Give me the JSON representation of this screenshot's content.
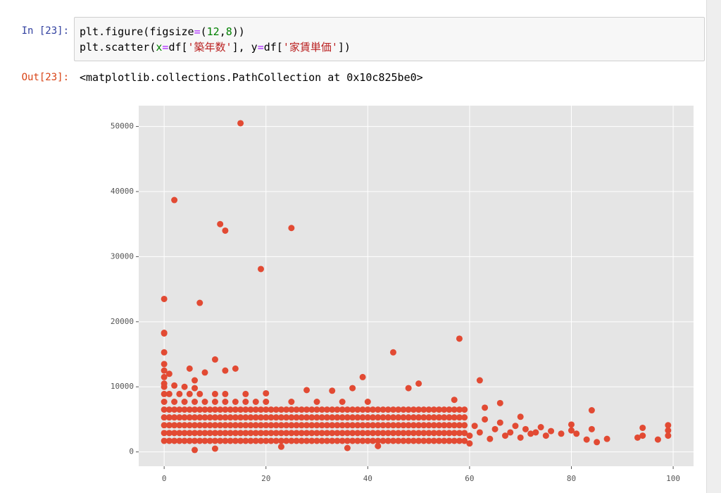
{
  "cells": [
    {
      "prompt": "In [23]:",
      "code": [
        [
          "plt.figure(figsize",
          "=",
          "(",
          "12",
          ",",
          "8",
          "))"
        ],
        [
          "plt.scatter(",
          "x",
          "=",
          "df[",
          "'築年数'",
          "], y",
          "=",
          "df[",
          "'家賃単価'",
          "])"
        ]
      ]
    },
    {
      "prompt": "Out[23]:",
      "output": "<matplotlib.collections.PathCollection at 0x10c825be0>"
    }
  ],
  "chart_data": {
    "type": "scatter",
    "color": "#E24A33",
    "grid": true,
    "xlim": [
      -5,
      104
    ],
    "ylim": [
      -2200,
      53200
    ],
    "xticks": [
      0,
      20,
      40,
      60,
      80,
      100
    ],
    "yticks": [
      0,
      10000,
      20000,
      30000,
      40000,
      50000
    ],
    "series": [
      {
        "x": [
          0,
          1,
          2,
          3,
          4,
          5,
          6,
          7,
          8,
          9,
          10,
          11,
          12,
          13,
          14,
          15,
          16,
          17,
          18,
          19,
          20,
          21,
          22,
          23,
          24,
          25,
          26,
          27,
          28,
          29,
          30,
          31,
          32,
          33,
          34,
          35,
          36,
          37,
          38,
          39,
          40,
          41,
          42,
          43,
          44,
          45,
          46,
          47,
          48,
          49,
          50,
          51,
          52,
          53,
          54,
          55,
          56,
          57,
          58,
          59,
          0,
          1,
          2,
          3,
          4,
          5,
          6,
          7,
          8,
          9,
          10,
          11,
          12,
          13,
          14,
          15,
          16,
          17,
          18,
          19,
          20,
          21,
          22,
          23,
          24,
          25,
          26,
          27,
          28,
          29,
          30,
          31,
          32,
          33,
          34,
          35,
          36,
          37,
          38,
          39,
          40,
          41,
          42,
          43,
          44,
          45,
          46,
          47,
          48,
          49,
          50,
          51,
          52,
          53,
          54,
          55,
          56,
          57,
          58,
          59,
          0,
          1,
          2,
          3,
          4,
          5,
          6,
          7,
          8,
          9,
          10,
          11,
          12,
          13,
          14,
          15,
          16,
          17,
          18,
          19,
          20,
          21,
          22,
          23,
          24,
          25,
          26,
          27,
          28,
          29,
          30,
          31,
          32,
          33,
          34,
          35,
          36,
          37,
          38,
          39,
          40,
          41,
          42,
          43,
          44,
          45,
          46,
          47,
          48,
          49,
          50,
          51,
          52,
          53,
          54,
          55,
          56,
          57,
          58,
          59,
          0,
          1,
          2,
          3,
          4,
          5,
          6,
          7,
          8,
          9,
          10,
          11,
          12,
          13,
          14,
          15,
          16,
          17,
          18,
          19,
          20,
          21,
          22,
          23,
          24,
          25,
          26,
          27,
          28,
          29,
          30,
          31,
          32,
          33,
          34,
          35,
          36,
          37,
          38,
          39,
          40,
          41,
          42,
          43,
          44,
          45,
          46,
          47,
          48,
          49,
          50,
          51,
          52,
          53,
          54,
          55,
          56,
          57,
          58,
          59,
          0,
          1,
          2,
          3,
          4,
          5,
          6,
          7,
          8,
          9,
          10,
          11,
          12,
          13,
          14,
          15,
          16,
          17,
          18,
          19,
          20,
          21,
          22,
          23,
          24,
          25,
          26,
          27,
          28,
          29,
          30,
          31,
          32,
          33,
          34,
          35,
          36,
          37,
          38,
          39,
          40,
          41,
          42,
          43,
          44,
          45,
          46,
          47,
          48,
          49,
          50,
          51,
          52,
          53,
          54,
          55,
          56,
          57,
          58,
          59,
          60,
          61,
          62,
          63,
          64,
          65,
          66,
          67,
          68,
          69,
          70,
          71,
          72,
          73,
          74,
          75,
          76,
          78,
          80,
          81,
          83,
          84,
          85,
          87,
          93,
          94,
          97,
          99,
          99,
          57,
          66,
          63,
          70,
          0,
          2,
          4,
          6,
          8,
          10,
          12,
          14,
          16,
          18,
          20,
          25,
          30,
          35,
          40,
          0,
          1,
          3,
          5,
          7,
          10,
          12,
          16,
          20,
          28,
          33,
          37,
          48,
          0,
          2,
          4,
          6,
          0,
          0,
          0,
          6,
          10,
          23,
          36,
          42,
          60,
          15,
          2,
          11,
          12,
          25,
          19,
          0,
          7,
          0,
          0,
          58,
          45,
          0,
          0,
          5,
          10,
          14,
          8,
          12,
          39,
          62,
          50,
          84,
          80,
          99,
          94,
          1,
          6
        ],
        "values": [
          1700,
          1700,
          1700,
          1700,
          1700,
          1700,
          1700,
          1700,
          1700,
          1700,
          1700,
          1700,
          1700,
          1700,
          1700,
          1700,
          1700,
          1700,
          1700,
          1700,
          1700,
          1700,
          1700,
          1700,
          1700,
          1700,
          1700,
          1700,
          1700,
          1700,
          1700,
          1700,
          1700,
          1700,
          1700,
          1700,
          1700,
          1700,
          1700,
          1700,
          1700,
          1700,
          1700,
          1700,
          1700,
          1700,
          1700,
          1700,
          1700,
          1700,
          1700,
          1700,
          1700,
          1700,
          1700,
          1700,
          1700,
          1700,
          1700,
          1700,
          2900,
          2900,
          2900,
          2900,
          2900,
          2900,
          2900,
          2900,
          2900,
          2900,
          2900,
          2900,
          2900,
          2900,
          2900,
          2900,
          2900,
          2900,
          2900,
          2900,
          2900,
          2900,
          2900,
          2900,
          2900,
          2900,
          2900,
          2900,
          2900,
          2900,
          2900,
          2900,
          2900,
          2900,
          2900,
          2900,
          2900,
          2900,
          2900,
          2900,
          2900,
          2900,
          2900,
          2900,
          2900,
          2900,
          2900,
          2900,
          2900,
          2900,
          2900,
          2900,
          2900,
          2900,
          2900,
          2900,
          2900,
          2900,
          2900,
          2900,
          4100,
          4100,
          4100,
          4100,
          4100,
          4100,
          4100,
          4100,
          4100,
          4100,
          4100,
          4100,
          4100,
          4100,
          4100,
          4100,
          4100,
          4100,
          4100,
          4100,
          4100,
          4100,
          4100,
          4100,
          4100,
          4100,
          4100,
          4100,
          4100,
          4100,
          4100,
          4100,
          4100,
          4100,
          4100,
          4100,
          4100,
          4100,
          4100,
          4100,
          4100,
          4100,
          4100,
          4100,
          4100,
          4100,
          4100,
          4100,
          4100,
          4100,
          4100,
          4100,
          4100,
          4100,
          4100,
          4100,
          4100,
          4100,
          4100,
          4100,
          5300,
          5300,
          5300,
          5300,
          5300,
          5300,
          5300,
          5300,
          5300,
          5300,
          5300,
          5300,
          5300,
          5300,
          5300,
          5300,
          5300,
          5300,
          5300,
          5300,
          5300,
          5300,
          5300,
          5300,
          5300,
          5300,
          5300,
          5300,
          5300,
          5300,
          5300,
          5300,
          5300,
          5300,
          5300,
          5300,
          5300,
          5300,
          5300,
          5300,
          5300,
          5300,
          5300,
          5300,
          5300,
          5300,
          5300,
          5300,
          5300,
          5300,
          5300,
          5300,
          5300,
          5300,
          5300,
          5300,
          5300,
          5300,
          5300,
          5300,
          6500,
          6500,
          6500,
          6500,
          6500,
          6500,
          6500,
          6500,
          6500,
          6500,
          6500,
          6500,
          6500,
          6500,
          6500,
          6500,
          6500,
          6500,
          6500,
          6500,
          6500,
          6500,
          6500,
          6500,
          6500,
          6500,
          6500,
          6500,
          6500,
          6500,
          6500,
          6500,
          6500,
          6500,
          6500,
          6500,
          6500,
          6500,
          6500,
          6500,
          6500,
          6500,
          6500,
          6500,
          6500,
          6500,
          6500,
          6500,
          6500,
          6500,
          6500,
          6500,
          6500,
          6500,
          6500,
          6500,
          6500,
          6500,
          6500,
          6500,
          2500,
          4000,
          3000,
          5000,
          2000,
          3500,
          4500,
          2500,
          3000,
          4000,
          2200,
          3500,
          2800,
          3000,
          3800,
          2500,
          3200,
          2800,
          3300,
          2800,
          1900,
          3500,
          1500,
          2000,
          2200,
          2500,
          1900,
          2500,
          3300,
          8000,
          7500,
          6800,
          5400,
          7700,
          7700,
          7700,
          7700,
          7700,
          7700,
          7700,
          7700,
          7700,
          7700,
          7700,
          7700,
          7700,
          7700,
          7700,
          8900,
          8900,
          8900,
          8900,
          8900,
          8900,
          8900,
          8900,
          9000,
          9500,
          9400,
          9800,
          9800,
          10500,
          10200,
          10000,
          9800,
          11500,
          12500,
          10000,
          300,
          500,
          800,
          600,
          900,
          1300,
          50500,
          38700,
          35000,
          34000,
          34400,
          28100,
          23500,
          22900,
          18300,
          18200,
          17400,
          15300,
          15300,
          13500,
          12800,
          14200,
          12800,
          12200,
          12500,
          11500,
          11000,
          10500,
          6400,
          4200,
          4100,
          3700,
          12000,
          11000
        ]
      }
    ]
  }
}
